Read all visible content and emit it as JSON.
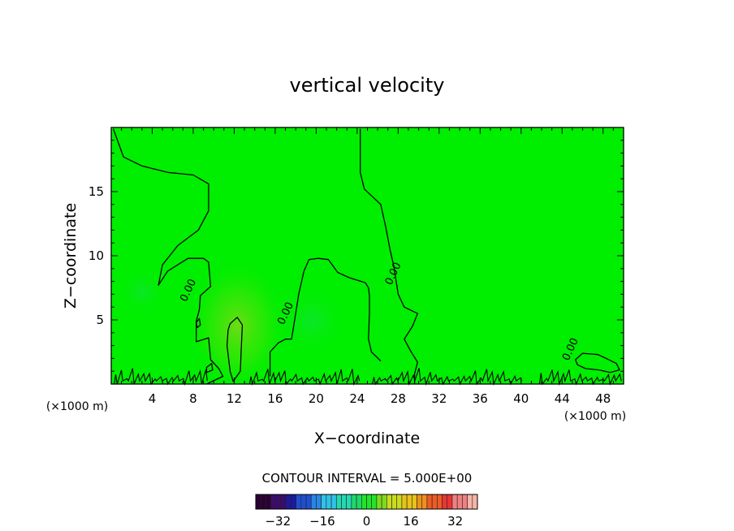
{
  "chart_data": {
    "type": "heatmap",
    "title": "vertical velocity",
    "xlabel": "X−coordinate",
    "ylabel": "Z−coordinate",
    "x_unit_label": "(×1000 m)",
    "y_unit_label": "(×1000 m)",
    "xlim": [
      0,
      50
    ],
    "ylim": [
      0,
      20
    ],
    "x_ticks": [
      4,
      8,
      12,
      16,
      20,
      24,
      28,
      32,
      36,
      40,
      44,
      48
    ],
    "y_ticks": [
      5,
      10,
      15
    ],
    "contour_interval_text": "CONTOUR INTERVAL = 5.000E+00",
    "contour_labels": [
      {
        "text": "0.00",
        "x": 7.8,
        "z": 7.2
      },
      {
        "text": "0.00",
        "x": 17.3,
        "z": 5.4
      },
      {
        "text": "0.00",
        "x": 27.8,
        "z": 8.5
      },
      {
        "text": "0.00",
        "x": 45.1,
        "z": 2.6
      }
    ],
    "contours": [
      {
        "level": 0,
        "points": [
          [
            0.2,
            19.9
          ],
          [
            1.2,
            17.7
          ],
          [
            3,
            17
          ],
          [
            5.5,
            16.5
          ],
          [
            8,
            16.3
          ],
          [
            9.5,
            15.6
          ],
          [
            9.5,
            13.5
          ],
          [
            8.5,
            12
          ],
          [
            6.5,
            10.8
          ],
          [
            5,
            9.3
          ],
          [
            4.6,
            7.7
          ],
          [
            5.5,
            8.8
          ],
          [
            7.5,
            9.8
          ],
          [
            9,
            9.8
          ],
          [
            9.5,
            9.5
          ],
          [
            9.7,
            7.6
          ],
          [
            8.7,
            6.9
          ],
          [
            8.6,
            5.8
          ],
          [
            8.3,
            4.9
          ],
          [
            8.3,
            3.3
          ],
          [
            9.5,
            3.6
          ],
          [
            9.7,
            1.9
          ],
          [
            10.5,
            1.2
          ],
          [
            10.9,
            0.6
          ],
          [
            9.3,
            0
          ]
        ]
      },
      {
        "level": 0,
        "points": [
          [
            24.3,
            19.9
          ],
          [
            24.3,
            16.5
          ],
          [
            24.7,
            15.2
          ],
          [
            26.3,
            14
          ],
          [
            26.8,
            12.2
          ],
          [
            27.2,
            10.5
          ],
          [
            27.6,
            9.1
          ],
          [
            28,
            7
          ],
          [
            28.6,
            6
          ],
          [
            29.9,
            5.5
          ],
          [
            29.4,
            4.5
          ],
          [
            28.6,
            3.5
          ],
          [
            29.2,
            2.6
          ],
          [
            29.9,
            1.7
          ],
          [
            29.6,
            0.8
          ],
          [
            29.6,
            0
          ]
        ]
      },
      {
        "level": 0,
        "points": [
          [
            15.5,
            0.6
          ],
          [
            15.5,
            2.5
          ],
          [
            16.3,
            3.2
          ],
          [
            17,
            3.5
          ],
          [
            17.6,
            3.5
          ],
          [
            17.9,
            5
          ],
          [
            18.3,
            7
          ],
          [
            18.8,
            8.8
          ],
          [
            19.3,
            9.7
          ],
          [
            20.2,
            9.8
          ],
          [
            21.2,
            9.7
          ],
          [
            22.1,
            8.7
          ],
          [
            23.2,
            8.3
          ],
          [
            24.8,
            7.9
          ],
          [
            25.1,
            7.5
          ],
          [
            25.2,
            6.9
          ],
          [
            25.2,
            5.5
          ],
          [
            25.1,
            3.5
          ],
          [
            25.4,
            2.5
          ],
          [
            26.3,
            1.8
          ]
        ]
      },
      {
        "level": 5,
        "closed": true,
        "points": [
          [
            11.6,
            4.7
          ],
          [
            12.3,
            5.2
          ],
          [
            12.8,
            4.6
          ],
          [
            12.7,
            3
          ],
          [
            12.6,
            1
          ],
          [
            11.9,
            0.2
          ],
          [
            11.6,
            1
          ],
          [
            11.3,
            3
          ],
          [
            11.4,
            4.2
          ]
        ]
      },
      {
        "level": 0,
        "closed": true,
        "points": [
          [
            9.3,
            1.3
          ],
          [
            9.8,
            1.6
          ],
          [
            9.9,
            1.1
          ],
          [
            9.3,
            0.9
          ]
        ]
      },
      {
        "level": 0,
        "closed": true,
        "points": [
          [
            8.3,
            4.8
          ],
          [
            8.6,
            5.1
          ],
          [
            8.7,
            4.6
          ],
          [
            8.4,
            4.4
          ]
        ]
      },
      {
        "level": 0,
        "closed": true,
        "points": [
          [
            45.3,
            1.9
          ],
          [
            46,
            2.4
          ],
          [
            47.5,
            2.3
          ],
          [
            48.3,
            2
          ],
          [
            49.3,
            1.6
          ],
          [
            49.6,
            1.1
          ],
          [
            48.7,
            0.9
          ],
          [
            47.6,
            1.1
          ],
          [
            46.3,
            1.2
          ],
          [
            45.5,
            1.5
          ]
        ]
      }
    ],
    "boundary_ripple_x_ranges": [
      [
        0.3,
        9.3
      ],
      [
        13.5,
        24.2
      ],
      [
        25.5,
        40.3
      ],
      [
        41.8,
        49.8
      ]
    ],
    "colorbar": {
      "ticks": [
        -32,
        -16,
        0,
        16,
        32
      ],
      "range": [
        -40,
        40
      ],
      "colors": [
        "#2b0033",
        "#3a0d6b",
        "#1a1a9e",
        "#1f4fd1",
        "#2a86e6",
        "#2ec3e8",
        "#25d8b0",
        "#1fd86a",
        "#22e52a",
        "#7ddb1f",
        "#c9dc1e",
        "#e8c21a",
        "#f0901c",
        "#ee5a24",
        "#e83535",
        "#f08080",
        "#f6b4a8"
      ]
    },
    "background_color": "#00ee00",
    "positive_patch_color": "#5fe000"
  }
}
